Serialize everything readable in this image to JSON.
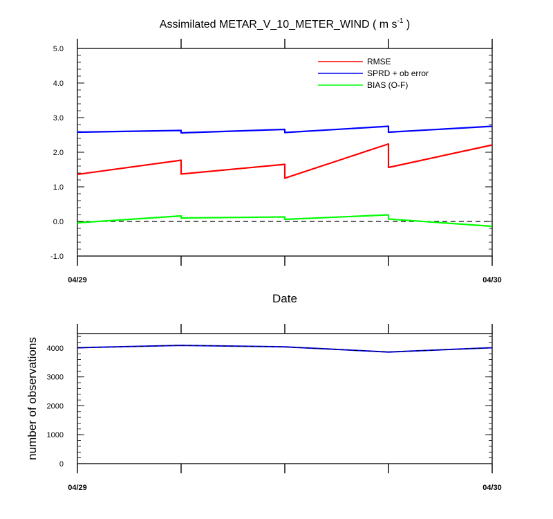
{
  "chart_data": [
    {
      "type": "line",
      "title": "Assimilated METAR_V_10_METER_WIND ( m s",
      "title_exponent": "-1",
      "title_suffix": " )",
      "xlabel": "Date",
      "ylabel": "",
      "x_tick_labels": [
        "04/29",
        "04/30"
      ],
      "ylim": [
        -1.0,
        5.0
      ],
      "y_tick_labels": [
        "-1.0",
        "0.0",
        "1.0",
        "2.0",
        "3.0",
        "4.0",
        "5.0"
      ],
      "y_ticks": [
        -1,
        0,
        1,
        2,
        3,
        4,
        5
      ],
      "legend_position": "top-right",
      "series": [
        {
          "name": "RMSE",
          "color": "#ff0000",
          "x": [
            0,
            1,
            1,
            2,
            2,
            3,
            3,
            4
          ],
          "values": [
            1.36,
            1.77,
            1.37,
            1.65,
            1.25,
            2.24,
            1.56,
            2.21
          ]
        },
        {
          "name": "SPRD + ob error",
          "color": "#0000ff",
          "x": [
            0,
            1,
            1,
            2,
            2,
            3,
            3,
            4
          ],
          "values": [
            2.58,
            2.63,
            2.56,
            2.66,
            2.57,
            2.75,
            2.58,
            2.75
          ]
        },
        {
          "name": "BIAS (O-F)",
          "color": "#00ff00",
          "x": [
            0,
            1,
            1,
            2,
            2,
            3,
            3,
            4
          ],
          "values": [
            -0.04,
            0.16,
            0.1,
            0.13,
            0.06,
            0.19,
            0.07,
            -0.14
          ]
        }
      ],
      "reference_line": {
        "y": 0,
        "style": "dashed",
        "color": "#000000"
      }
    },
    {
      "type": "line",
      "title": "",
      "xlabel": "",
      "ylabel": "number of observations",
      "x_tick_labels": [
        "04/29",
        "04/30"
      ],
      "ylim": [
        0,
        4500
      ],
      "y_tick_labels": [
        "0",
        "1000",
        "2000",
        "3000",
        "4000"
      ],
      "y_ticks": [
        0,
        1000,
        2000,
        3000,
        4000
      ],
      "series": [
        {
          "name": "number of observations",
          "color": "#0000ff",
          "x": [
            0,
            1,
            2,
            3,
            4
          ],
          "values": [
            4010,
            4090,
            4040,
            3860,
            4010
          ]
        }
      ]
    }
  ]
}
